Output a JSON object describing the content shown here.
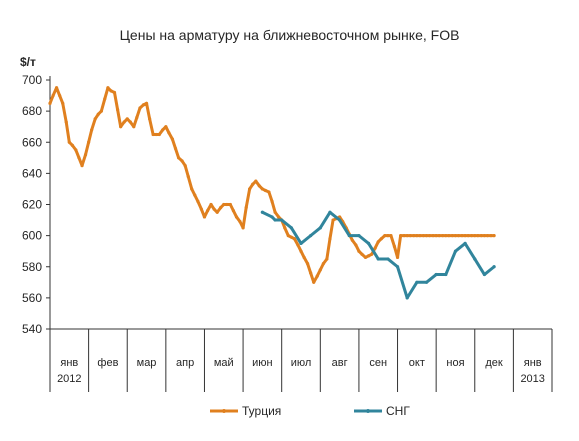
{
  "chart_data": {
    "type": "line",
    "title": "Цены на арматуру на ближневосточном рынке, FOB",
    "ylabel": "$/т",
    "ylim": [
      540,
      700
    ],
    "yticks": [
      540,
      560,
      580,
      600,
      620,
      640,
      660,
      680,
      700
    ],
    "grid": false,
    "legend_position": "bottom",
    "months": [
      {
        "label": "янв",
        "year": "2012"
      },
      {
        "label": "фев"
      },
      {
        "label": "мар"
      },
      {
        "label": "апр"
      },
      {
        "label": "май"
      },
      {
        "label": "июн"
      },
      {
        "label": "июл"
      },
      {
        "label": "авг"
      },
      {
        "label": "сен"
      },
      {
        "label": "окт"
      },
      {
        "label": "ноя"
      },
      {
        "label": "дек"
      },
      {
        "label": "янв",
        "year": "2013"
      }
    ],
    "series": [
      {
        "name": "Турция",
        "color": "#E0801F",
        "x": [
          0.0,
          0.08,
          0.17,
          0.25,
          0.33,
          0.42,
          0.5,
          0.58,
          0.67,
          0.75,
          0.83,
          0.92,
          1.0,
          1.08,
          1.17,
          1.25,
          1.33,
          1.42,
          1.5,
          1.58,
          1.67,
          1.75,
          1.83,
          1.92,
          2.0,
          2.08,
          2.17,
          2.25,
          2.33,
          2.42,
          2.5,
          2.58,
          2.67,
          2.75,
          2.83,
          2.92,
          3.0,
          3.08,
          3.17,
          3.25,
          3.33,
          3.42,
          3.5,
          3.58,
          3.67,
          3.75,
          3.83,
          3.92,
          4.0,
          4.08,
          4.17,
          4.25,
          4.33,
          4.42,
          4.5,
          4.58,
          4.67,
          4.75,
          4.83,
          4.92,
          5.0,
          5.08,
          5.17,
          5.25,
          5.33,
          5.42,
          5.5,
          5.58,
          5.67,
          5.75,
          5.83,
          5.92,
          6.0,
          6.08,
          6.17,
          6.25,
          6.33,
          6.42,
          6.5,
          6.58,
          6.67,
          6.75,
          6.83,
          6.92,
          7.0,
          7.08,
          7.17,
          7.25,
          7.33,
          7.42,
          7.5,
          7.58,
          7.67,
          7.75,
          7.83,
          7.92,
          8.0,
          8.08,
          8.17,
          8.25,
          8.33,
          8.42,
          8.5,
          8.58,
          8.67,
          8.75,
          8.83,
          8.92,
          9.0,
          9.08,
          9.17,
          9.25,
          9.33,
          9.42,
          9.5,
          9.58,
          9.67,
          9.75,
          9.83,
          9.92,
          10.0,
          10.08,
          10.17,
          10.25,
          10.33,
          10.42,
          10.5,
          10.58,
          10.67,
          10.75,
          10.83,
          10.92,
          11.0,
          11.08,
          11.17,
          11.25,
          11.33,
          11.42,
          11.5
        ],
        "values": [
          685,
          690,
          695,
          690,
          685,
          673,
          660,
          658,
          655,
          650,
          645,
          652,
          660,
          668,
          675,
          678,
          680,
          688,
          695,
          693,
          692,
          681,
          670,
          673,
          675,
          673,
          670,
          676,
          682,
          684,
          685,
          675,
          665,
          665,
          665,
          668,
          670,
          666,
          662,
          656,
          650,
          648,
          645,
          638,
          630,
          626,
          622,
          617,
          612,
          616,
          620,
          617,
          615,
          618,
          620,
          620,
          620,
          616,
          612,
          609,
          605,
          618,
          630,
          633,
          635,
          632,
          630,
          629,
          628,
          622,
          615,
          612,
          610,
          605,
          600,
          599,
          598,
          594,
          590,
          586,
          582,
          576,
          570,
          574,
          578,
          582,
          585,
          598,
          610,
          611,
          612,
          609,
          605,
          601,
          597,
          594,
          590,
          588,
          586,
          587,
          588,
          592,
          596,
          598,
          600,
          600,
          600,
          593,
          586,
          600,
          600,
          600,
          600,
          600,
          600,
          600,
          600,
          600,
          600,
          600,
          600,
          600,
          600,
          600,
          600,
          600,
          600,
          600,
          600,
          600,
          600,
          600,
          600,
          600,
          600,
          600,
          600,
          600,
          600
        ]
      },
      {
        "name": "СНГ",
        "color": "#31859C",
        "x": [
          5.5,
          5.75,
          5.83,
          6.0,
          6.25,
          6.5,
          6.75,
          7.0,
          7.25,
          7.5,
          7.75,
          8.0,
          8.25,
          8.5,
          8.75,
          9.0,
          9.25,
          9.5,
          9.75,
          10.0,
          10.25,
          10.5,
          10.75,
          11.0,
          11.25,
          11.5
        ],
        "values": [
          615,
          612,
          610,
          610,
          605,
          595,
          600,
          605,
          615,
          610,
          600,
          600,
          595,
          585,
          585,
          580,
          560,
          570,
          570,
          575,
          575,
          590,
          595,
          585,
          575,
          580
        ]
      }
    ]
  }
}
